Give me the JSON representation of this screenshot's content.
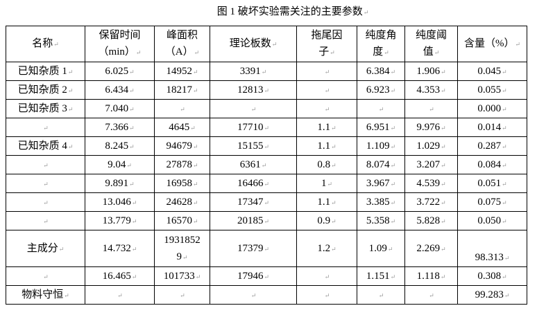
{
  "title": "图 1  破坏实验需关注的主要参数",
  "table": {
    "headers": [
      "名称",
      "保留时间（min）",
      "峰面积（A）",
      "理论板数",
      "拖尾因子",
      "纯度角度",
      "纯度阈值",
      "含量（%）"
    ],
    "rows": [
      [
        "已知杂质 1",
        "6.025",
        "14952",
        "3391",
        "",
        "6.384",
        "1.906",
        "0.045"
      ],
      [
        "已知杂质 2",
        "6.434",
        "18217",
        "12813",
        "",
        "6.923",
        "4.353",
        "0.055"
      ],
      [
        "已知杂质 3",
        "7.040",
        "",
        "",
        "",
        "",
        "",
        "0.000"
      ],
      [
        "",
        "7.366",
        "4645",
        "17710",
        "1.1",
        "6.951",
        "9.976",
        "0.014"
      ],
      [
        "已知杂质 4",
        "8.245",
        "94679",
        "15155",
        "1.1",
        "1.109",
        "1.029",
        "0.287"
      ],
      [
        "",
        "9.04",
        "27878",
        "6361",
        "0.8",
        "8.074",
        "3.207",
        "0.084"
      ],
      [
        "",
        "9.891",
        "16958",
        "16466",
        "1",
        "3.967",
        "4.539",
        "0.051"
      ],
      [
        "",
        "13.046",
        "24628",
        "17347",
        "1.1",
        "3.385",
        "3.722",
        "0.075"
      ],
      [
        "",
        "13.779",
        "16570",
        "20185",
        "0.9",
        "5.358",
        "5.828",
        "0.050"
      ],
      [
        "主成分",
        "14.732",
        "19318529",
        "17379",
        "1.2",
        "1.09",
        "2.269",
        "98.313"
      ],
      [
        "",
        "16.465",
        "101733",
        "17946",
        "",
        "1.151",
        "1.118",
        "0.308"
      ],
      [
        "物料守恒",
        "",
        "",
        "",
        "",
        "",
        "",
        "99.283"
      ]
    ]
  }
}
